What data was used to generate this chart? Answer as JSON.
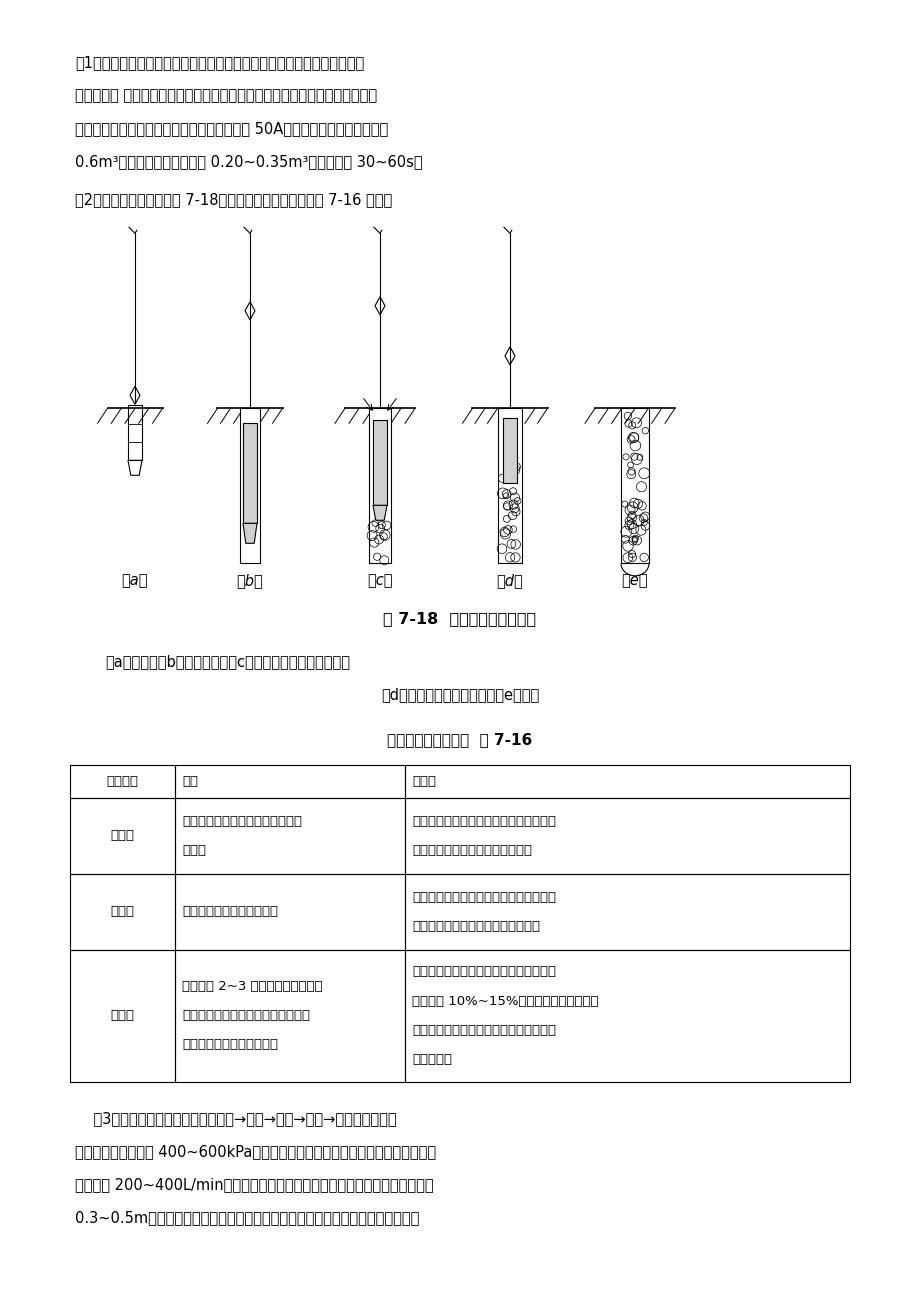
{
  "background_color": "#ffffff",
  "page_width": 9.2,
  "page_height": 13.02,
  "paragraph1_line1": "（1）施工前应先进行振冲试验，以确定成孔合适的水压、水量、成孔速度",
  "paragraph1_line2": "及填料方法 达到土体密实时的密实电流、填料量和留振时间（称为施工工艺的",
  "paragraph1_line3": "三要素）。一般控制标准是：密实电流不小于 50A；填料量为每米桶长不小于",
  "paragraph1_line4": "0.6m³，且每次搅拌量控制在 0.20~0.35m³；留振时间 30~60s。",
  "paragraph2": "（2）振冲法施工工艺如图 7-18，振冲造孔顺序方法可按表 7-16 选用。",
  "fig_caption_bold": "图 7-18  振冲碎石桶施工工艺",
  "fig_subcap1": "（a）定位；（b）振冲下沉；（c）振冲至设计标高并下料；",
  "fig_subcap2": "（d）边振边下料，边上提；（e）成桶",
  "table_title": "振冲成孔方法的选择  表 7-16",
  "table_headers": [
    "造孔方法",
    "步骤",
    "优缺点"
  ],
  "table_row0_col0": "排孔法",
  "table_row0_col1": "由一端开始，依次逐步造孔到另一\n端结束",
  "table_row0_col2": "易于施工，且不易漏掉孔位。但当孔位较\n密时，后打的桶易发生倾斜和位移",
  "table_row1_col0": "跳打法",
  "table_row1_col1": "同一排孔采取隔一孔造一孔",
  "table_row1_col2": "先后造孔影响小，易保证桶的垂直度。但\n要防止漏掉孔位，并应注意桶位准确",
  "table_row2_col0": "围幕法",
  "table_row2_col1": "先造外围 2~3 圈（排）孔，然后造\n内圈（排）。采用隔圈（排）造一圈\n（排）或依次向中心区造孔",
  "table_row2_col2": "能减少振冲能量的扩散，振密效果好，可\n节约桶数 10%~15%，大面积施工常采用此\n法。但施工时应注意防止漏掎孔位和保证\n其位置准确",
  "paragraph3_line1": "    （3）振冲置换法施工顺序为：定位→成孔→清孔→填料→振实。启动水泵",
  "paragraph3_line2": "和振冲器，水压可用 400~600kPa（对于较硬土层应取上限，对于软土取下限），",
  "paragraph3_line3": "水量可用 200~400L/min，使振冲器徐徐沉入土中，直至达到设计处理深度以上",
  "paragraph3_line4": "0.3~0.5m。如土层中夹有硬层时，应适当进行扩孔，即在硬层中将振冲器往复上",
  "fig_labels": [
    "（a）",
    "（b）",
    "（c）",
    "（d）",
    "（e）"
  ]
}
